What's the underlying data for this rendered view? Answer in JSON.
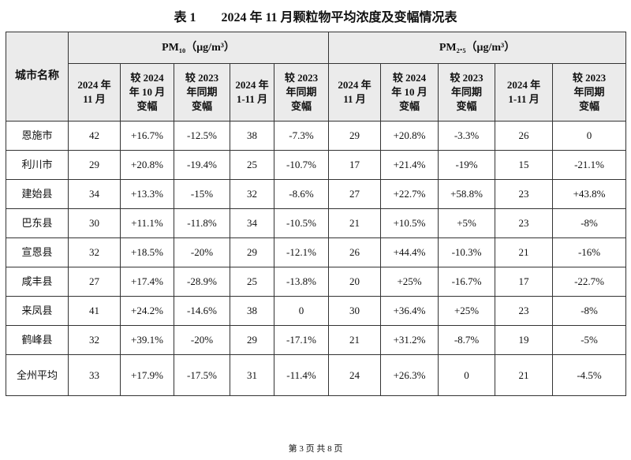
{
  "title": "表 1　　2024 年 11 月颗粒物平均浓度及变幅情况表",
  "table": {
    "city_header": "城市名称",
    "groups": [
      "PM₁₀（μg/m³）",
      "PM₂.₅（μg/m³）"
    ],
    "subheaders": [
      [
        "2024 年\n11 月",
        "较 2024\n年 10 月\n变幅",
        "较 2023\n年同期\n变幅",
        "2024 年\n1-11 月",
        "较 2023\n年同期\n变幅"
      ],
      [
        "2024 年\n11 月",
        "较 2024\n年 10 月\n变幅",
        "较 2023\n年同期\n变幅",
        "2024 年\n1-11 月",
        "较 2023\n年同期\n变幅"
      ]
    ],
    "rows": [
      [
        "恩施市",
        "42",
        "+16.7%",
        "-12.5%",
        "38",
        "-7.3%",
        "29",
        "+20.8%",
        "-3.3%",
        "26",
        "0"
      ],
      [
        "利川市",
        "29",
        "+20.8%",
        "-19.4%",
        "25",
        "-10.7%",
        "17",
        "+21.4%",
        "-19%",
        "15",
        "-21.1%"
      ],
      [
        "建始县",
        "34",
        "+13.3%",
        "-15%",
        "32",
        "-8.6%",
        "27",
        "+22.7%",
        "+58.8%",
        "23",
        "+43.8%"
      ],
      [
        "巴东县",
        "30",
        "+11.1%",
        "-11.8%",
        "34",
        "-10.5%",
        "21",
        "+10.5%",
        "+5%",
        "23",
        "-8%"
      ],
      [
        "宣恩县",
        "32",
        "+18.5%",
        "-20%",
        "29",
        "-12.1%",
        "26",
        "+44.4%",
        "-10.3%",
        "21",
        "-16%"
      ],
      [
        "咸丰县",
        "27",
        "+17.4%",
        "-28.9%",
        "25",
        "-13.8%",
        "20",
        "+25%",
        "-16.7%",
        "17",
        "-22.7%"
      ],
      [
        "来凤县",
        "41",
        "+24.2%",
        "-14.6%",
        "38",
        "0",
        "30",
        "+36.4%",
        "+25%",
        "23",
        "-8%"
      ],
      [
        "鹤峰县",
        "32",
        "+39.1%",
        "-20%",
        "29",
        "-17.1%",
        "21",
        "+31.2%",
        "-8.7%",
        "19",
        "-5%"
      ],
      [
        "全州平均",
        "33",
        "+17.9%",
        "-17.5%",
        "31",
        "-11.4%",
        "24",
        "+26.3%",
        "0",
        "21",
        "-4.5%"
      ]
    ]
  },
  "footer": "第 3 页 共 8 页"
}
